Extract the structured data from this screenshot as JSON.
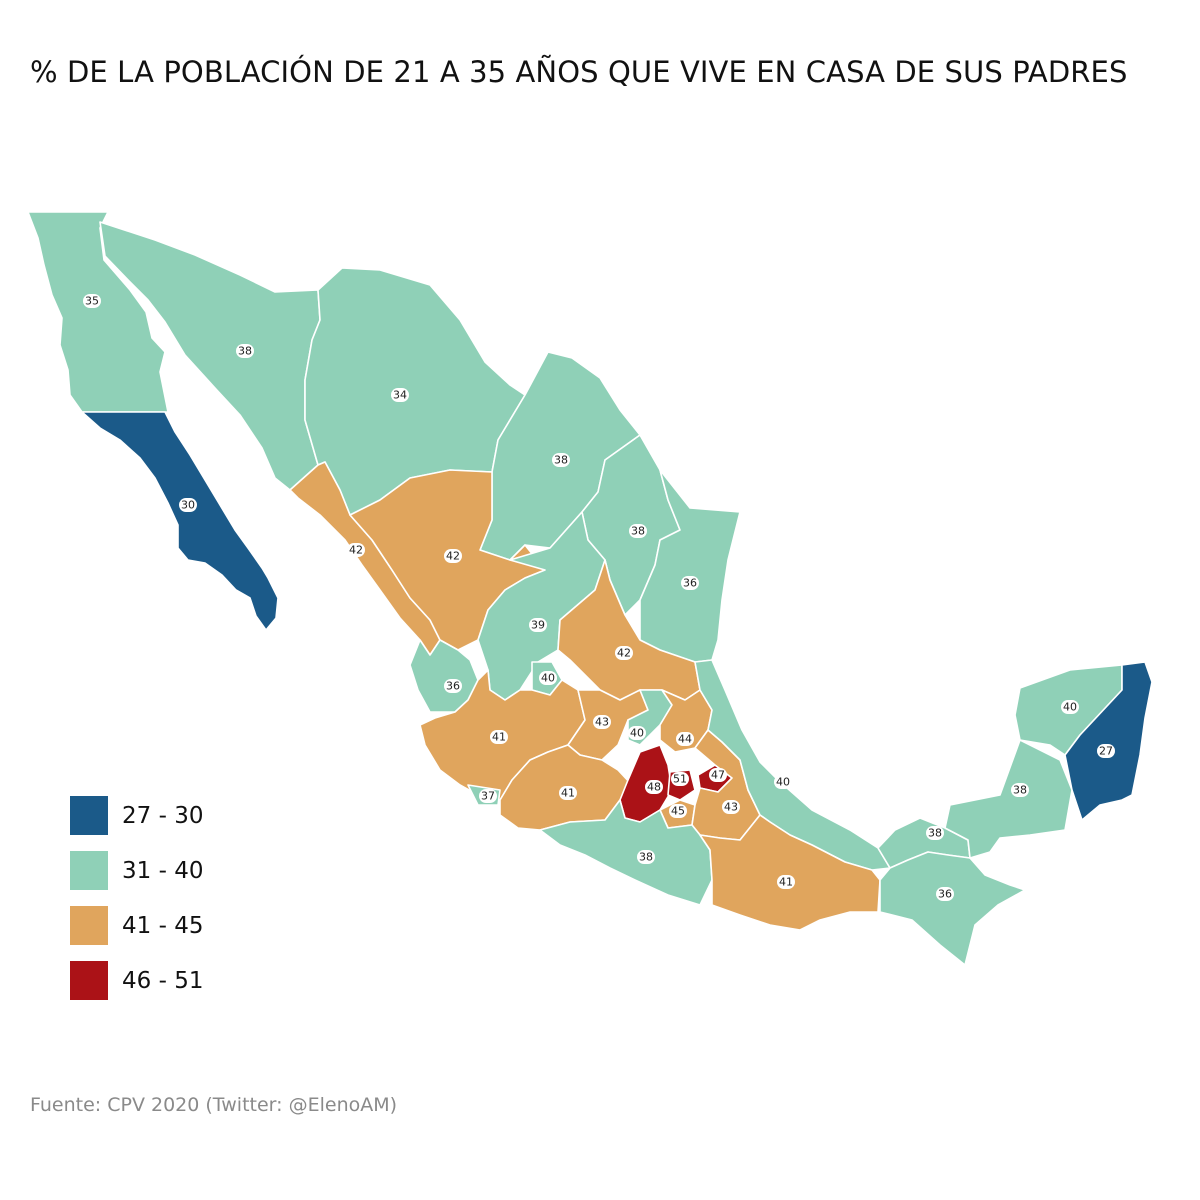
{
  "title": "% DE LA POBLACIÓN DE 21 A 35 AÑOS QUE VIVE EN CASA DE SUS PADRES",
  "source": "Fuente: CPV 2020 (Twitter: @ElenoAM)",
  "colors": {
    "c27_30": "#1b5a89",
    "c31_40": "#8fd0b7",
    "c41_45": "#e0a55d",
    "c46_51": "#ab1217"
  },
  "legend": [
    {
      "label": "27 - 30",
      "color": "#1b5a89"
    },
    {
      "label": "31 - 40",
      "color": "#8fd0b7"
    },
    {
      "label": "41 - 45",
      "color": "#e0a55d"
    },
    {
      "label": "46 - 51",
      "color": "#ab1217"
    }
  ],
  "states": {
    "baja_california": {
      "value": 35,
      "label": "35"
    },
    "baja_california_sur": {
      "value": 30,
      "label": "30"
    },
    "sonora": {
      "value": 38,
      "label": "38"
    },
    "chihuahua": {
      "value": 34,
      "label": "34"
    },
    "coahuila": {
      "value": 38,
      "label": "38"
    },
    "nuevo_leon": {
      "value": 38,
      "label": "38"
    },
    "tamaulipas": {
      "value": 36,
      "label": "36"
    },
    "sinaloa": {
      "value": 42,
      "label": "42"
    },
    "durango": {
      "value": 42,
      "label": "42"
    },
    "zacatecas": {
      "value": 39,
      "label": "39"
    },
    "san_luis_potosi": {
      "value": 42,
      "label": "42"
    },
    "nayarit": {
      "value": 36,
      "label": "36"
    },
    "aguascalientes": {
      "value": 40,
      "label": "40"
    },
    "jalisco": {
      "value": 41,
      "label": "41"
    },
    "guanajuato": {
      "value": 43,
      "label": "43"
    },
    "queretaro": {
      "value": 40,
      "label": "40"
    },
    "hidalgo": {
      "value": 44,
      "label": "44"
    },
    "colima": {
      "value": 37,
      "label": "37"
    },
    "michoacan": {
      "value": 41,
      "label": "41"
    },
    "estado_de_mexico": {
      "value": 48,
      "label": "48"
    },
    "cdmx": {
      "value": 51,
      "label": "51"
    },
    "morelos": {
      "value": 45,
      "label": "45"
    },
    "tlaxcala": {
      "value": 47,
      "label": "47"
    },
    "puebla": {
      "value": 43,
      "label": "43"
    },
    "veracruz": {
      "value": 40,
      "label": "40"
    },
    "guerrero": {
      "value": 38,
      "label": "38"
    },
    "oaxaca": {
      "value": 41,
      "label": "41"
    },
    "tabasco": {
      "value": 38,
      "label": "38"
    },
    "chiapas": {
      "value": 36,
      "label": "36"
    },
    "campeche": {
      "value": 38,
      "label": "38"
    },
    "yucatan": {
      "value": 40,
      "label": "40"
    },
    "quintana_roo": {
      "value": 27,
      "label": "27"
    }
  }
}
